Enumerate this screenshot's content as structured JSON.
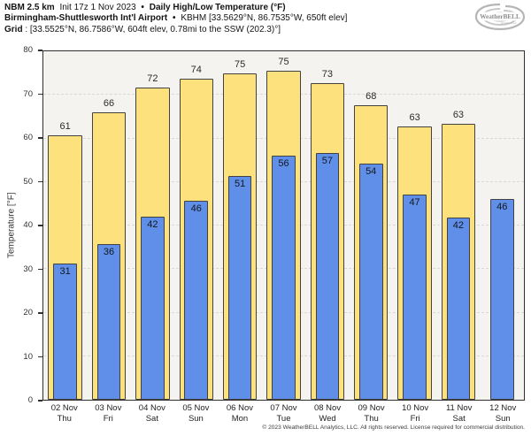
{
  "header": {
    "line1": {
      "model": "NBM 2.5 km",
      "init": "Init 17z 1 Nov 2023",
      "sep": "•",
      "title": "Daily High/Low Temperature (°F)"
    },
    "line2": {
      "station": "Birmingham-Shuttlesworth Int'l Airport",
      "sep": "•",
      "details": "KBHM [33.5629°N, 86.7535°W, 650ft elev]"
    },
    "line3": {
      "label": "Grid",
      "details": ": [33.5525°N, 86.7586°W, 604ft elev, 0.78mi to the SSW (202.3)°]"
    }
  },
  "logo": {
    "brand": "WeatherBELL",
    "subtext": "Analytics LLC"
  },
  "chart_data": {
    "type": "bar",
    "title": "Daily High/Low Temperature (°F)",
    "ylabel": "Temperature [°F]",
    "ylim": [
      0,
      80
    ],
    "yticks": [
      0,
      10,
      20,
      30,
      40,
      50,
      60,
      70,
      80
    ],
    "grid": "dashed horizontal gridlines every 10°F",
    "legend": "none shown (yellow bar = daily high, blue bar = daily low)",
    "colors": {
      "high": "#fde17d",
      "low": "#5f8fe8",
      "bar_border": "#424242",
      "plot_bg": "#f4f3f0"
    },
    "days": [
      {
        "date": "02 Nov",
        "weekday": "Thu",
        "high": 61,
        "low": 31,
        "high_bar": 60.7,
        "low_bar": 31.2
      },
      {
        "date": "03 Nov",
        "weekday": "Fri",
        "high": 66,
        "low": 36,
        "high_bar": 66.0,
        "low_bar": 35.8
      },
      {
        "date": "04 Nov",
        "weekday": "Sat",
        "high": 72,
        "low": 42,
        "high_bar": 71.7,
        "low_bar": 42.0
      },
      {
        "date": "05 Nov",
        "weekday": "Sun",
        "high": 74,
        "low": 46,
        "high_bar": 73.8,
        "low_bar": 45.6
      },
      {
        "date": "06 Nov",
        "weekday": "Mon",
        "high": 75,
        "low": 51,
        "high_bar": 75.0,
        "low_bar": 51.4
      },
      {
        "date": "07 Nov",
        "weekday": "Tue",
        "high": 75,
        "low": 56,
        "high_bar": 75.5,
        "low_bar": 56.0
      },
      {
        "date": "08 Nov",
        "weekday": "Wed",
        "high": 73,
        "low": 57,
        "high_bar": 72.7,
        "low_bar": 56.7
      },
      {
        "date": "09 Nov",
        "weekday": "Thu",
        "high": 68,
        "low": 54,
        "high_bar": 67.6,
        "low_bar": 54.2
      },
      {
        "date": "10 Nov",
        "weekday": "Fri",
        "high": 63,
        "low": 47,
        "high_bar": 62.8,
        "low_bar": 47.2
      },
      {
        "date": "11 Nov",
        "weekday": "Sat",
        "high": 63,
        "low": 42,
        "high_bar": 63.4,
        "low_bar": 41.8
      },
      {
        "date": "12 Nov",
        "weekday": "Sun",
        "high": null,
        "low": 46,
        "high_bar": null,
        "low_bar": 46.0
      }
    ]
  },
  "footer": {
    "text": "© 2023 WeatherBELL Analytics, LLC. All rights reserved. License required for commercial distribution."
  }
}
